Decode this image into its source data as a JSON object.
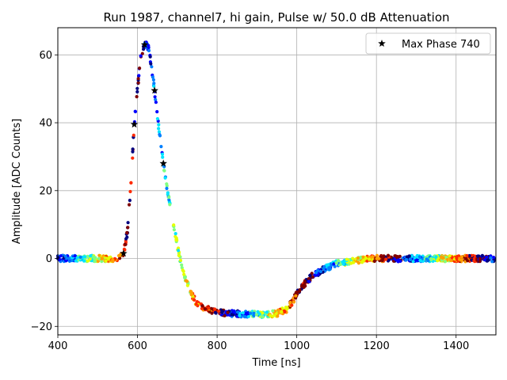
{
  "chart_data": {
    "type": "scatter",
    "title": "Run 1987, channel7, hi gain, Pulse w/ 50.0 dB Attenuation",
    "xlabel": "Time [ns]",
    "ylabel": "Amplitude [ADC Counts]",
    "xlim": [
      400,
      1500
    ],
    "ylim": [
      -22.5,
      68
    ],
    "xticks": [
      400,
      600,
      800,
      1000,
      1200,
      1400
    ],
    "yticks": [
      -20,
      0,
      20,
      40,
      60
    ],
    "grid": true,
    "legend": {
      "position": "top-right",
      "entries": [
        "Max Phase 740"
      ]
    },
    "pulse_curve": [
      [
        400,
        0
      ],
      [
        540,
        0
      ],
      [
        555,
        0.2
      ],
      [
        565,
        1.5
      ],
      [
        575,
        8
      ],
      [
        585,
        25
      ],
      [
        592,
        39.5
      ],
      [
        600,
        50
      ],
      [
        608,
        59
      ],
      [
        615,
        62.5
      ],
      [
        620,
        63.5
      ],
      [
        628,
        62
      ],
      [
        635,
        57
      ],
      [
        643,
        49.5
      ],
      [
        652,
        40
      ],
      [
        660,
        32
      ],
      [
        665,
        28
      ],
      [
        675,
        20
      ],
      [
        690,
        10
      ],
      [
        705,
        1
      ],
      [
        715,
        -4
      ],
      [
        730,
        -9
      ],
      [
        745,
        -12.5
      ],
      [
        765,
        -14.5
      ],
      [
        800,
        -15.8
      ],
      [
        850,
        -16.3
      ],
      [
        900,
        -16.5
      ],
      [
        950,
        -16.2
      ],
      [
        975,
        -15
      ],
      [
        990,
        -12.5
      ],
      [
        1010,
        -8.5
      ],
      [
        1040,
        -5
      ],
      [
        1070,
        -3
      ],
      [
        1100,
        -1.5
      ],
      [
        1150,
        -0.5
      ],
      [
        1200,
        0
      ],
      [
        1500,
        0
      ]
    ],
    "series": [
      {
        "name": "Max Phase 740",
        "marker": "star",
        "color": "#000000",
        "x": [
          565,
          592,
          618,
          643,
          665
        ],
        "y": [
          1.5,
          39.5,
          63,
          49.5,
          28
        ]
      }
    ],
    "phase_colormap": "jet",
    "phase_colors": [
      "#00007f",
      "#0000ff",
      "#007fff",
      "#00e5ff",
      "#7fff7f",
      "#e5ff00",
      "#ff9f00",
      "#ff2a00",
      "#7f0000"
    ]
  }
}
